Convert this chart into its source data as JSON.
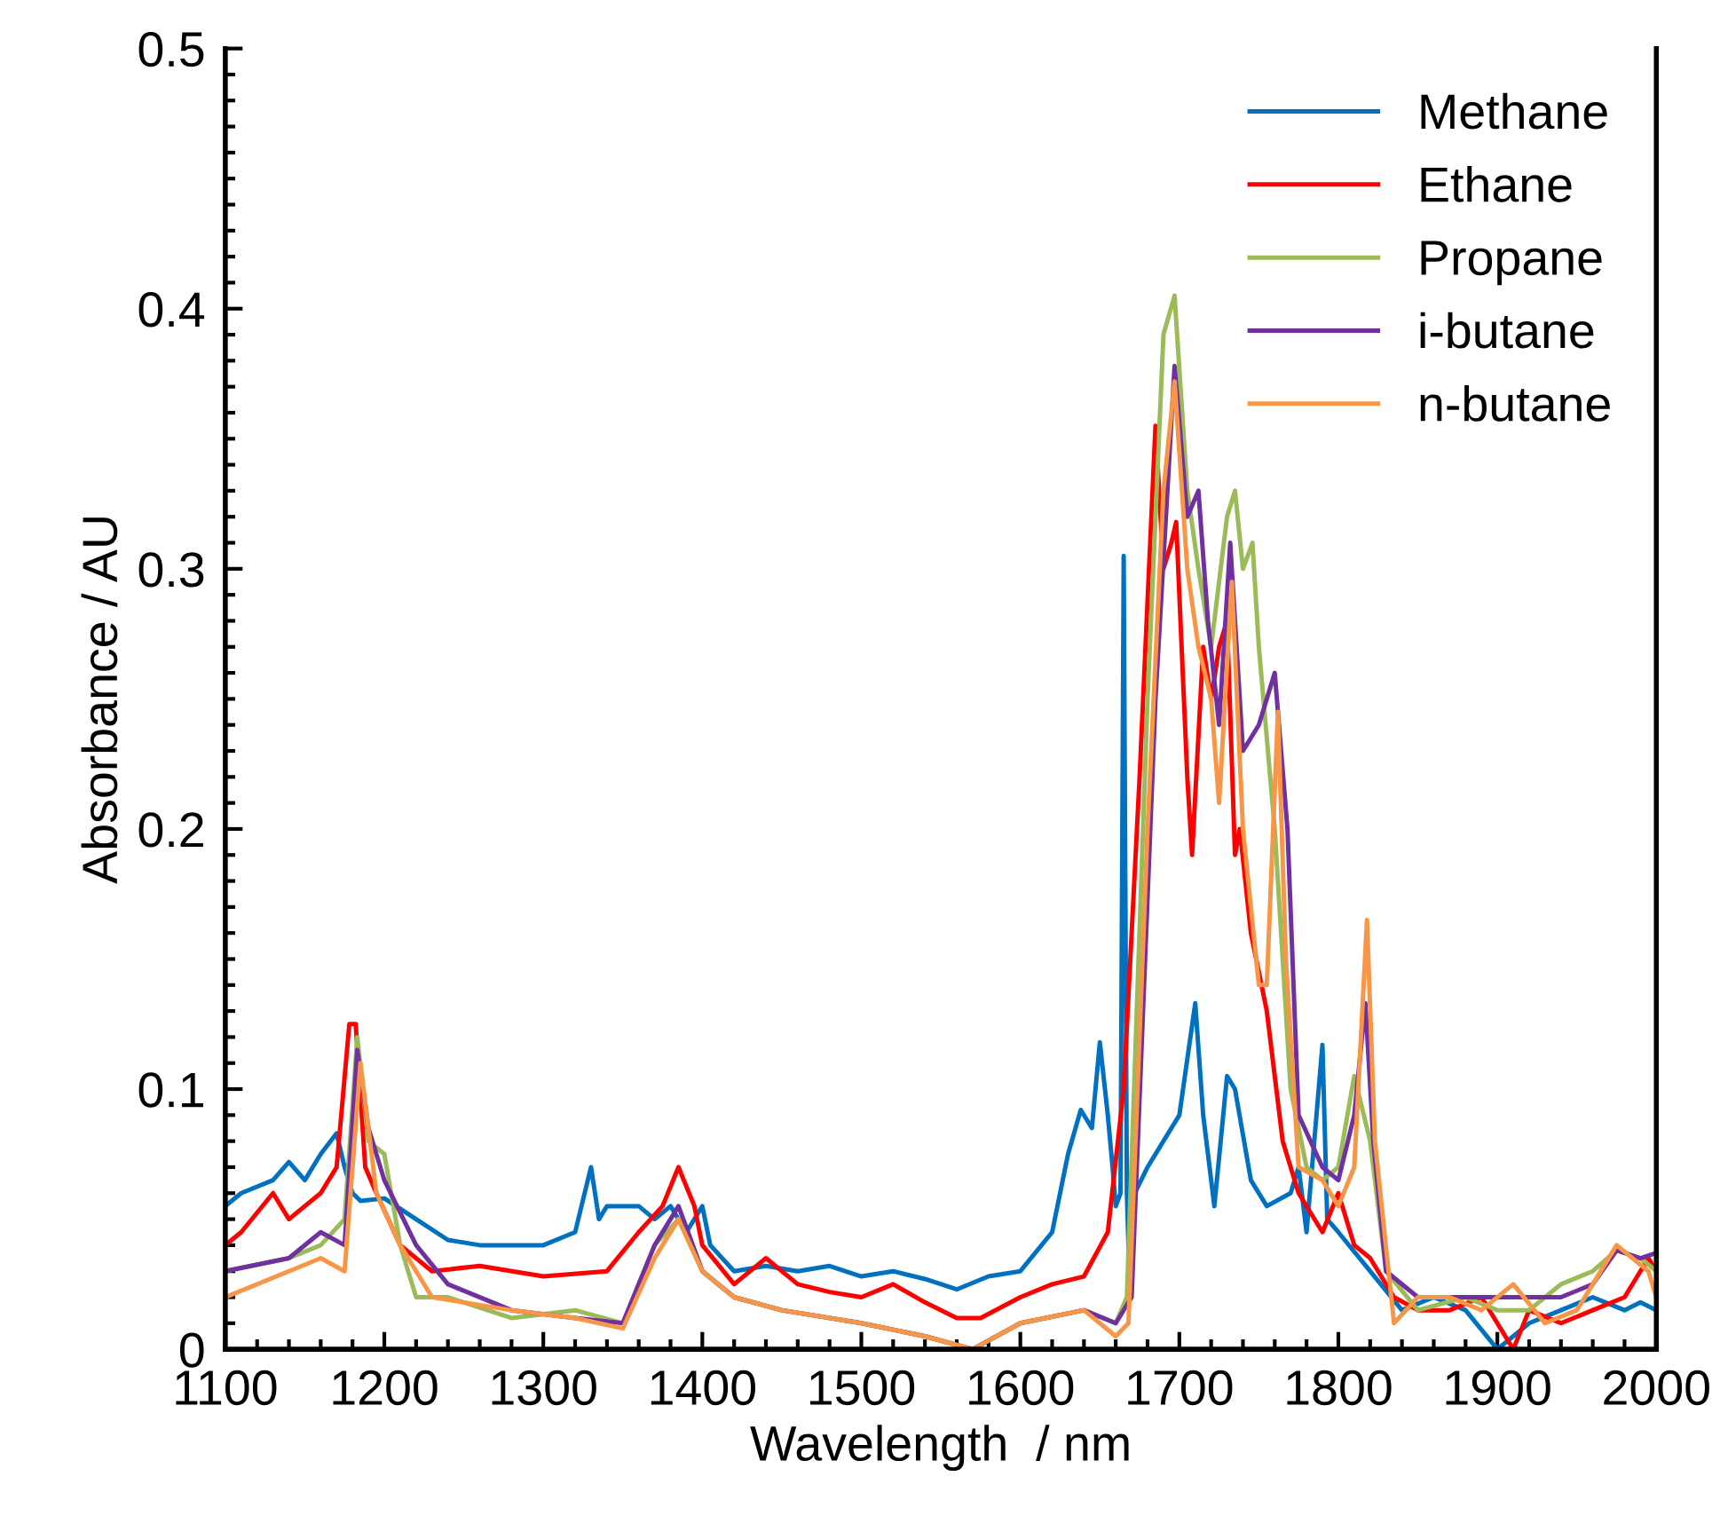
{
  "chart_data": {
    "type": "line",
    "xlabel": "Wavelength  / nm",
    "ylabel": "Absorbance / AU",
    "xlim": [
      1100,
      2000
    ],
    "xticks": [
      1100,
      1200,
      1300,
      1400,
      1500,
      1600,
      1700,
      1800,
      1900,
      2000
    ],
    "ylim": [
      0,
      0.5
    ],
    "yticks": [
      0,
      0.1,
      0.2,
      0.3,
      0.4,
      0.5
    ],
    "grid": false,
    "legend": "top right",
    "marker": "none",
    "line_style": "solid",
    "series": [
      {
        "name": "Methane",
        "color": "#0070c0",
        "x": [
          1100,
          1110,
          1130,
          1140,
          1150,
          1160,
          1170,
          1175,
          1180,
          1185,
          1200,
          1220,
          1240,
          1260,
          1280,
          1300,
          1320,
          1330,
          1335,
          1340,
          1360,
          1370,
          1380,
          1390,
          1400,
          1405,
          1420,
          1440,
          1460,
          1480,
          1500,
          1520,
          1540,
          1560,
          1580,
          1600,
          1620,
          1630,
          1638,
          1645,
          1650,
          1655,
          1658,
          1660,
          1663,
          1665,
          1667,
          1669,
          1672,
          1680,
          1690,
          1700,
          1710,
          1715,
          1722,
          1730,
          1735,
          1745,
          1755,
          1770,
          1775,
          1780,
          1790,
          1793,
          1800,
          1820,
          1840,
          1860,
          1880,
          1900,
          1910,
          1920,
          1940,
          1960,
          1980,
          1990,
          2000
        ],
        "values": [
          0.055,
          0.06,
          0.065,
          0.072,
          0.065,
          0.075,
          0.083,
          0.07,
          0.06,
          0.057,
          0.058,
          0.05,
          0.042,
          0.04,
          0.04,
          0.04,
          0.045,
          0.07,
          0.05,
          0.055,
          0.055,
          0.05,
          0.055,
          0.045,
          0.055,
          0.04,
          0.03,
          0.032,
          0.03,
          0.032,
          0.028,
          0.03,
          0.027,
          0.023,
          0.028,
          0.03,
          0.045,
          0.075,
          0.092,
          0.085,
          0.118,
          0.09,
          0.07,
          0.055,
          0.06,
          0.305,
          0.06,
          0.02,
          0.06,
          0.07,
          0.08,
          0.09,
          0.133,
          0.09,
          0.055,
          0.105,
          0.1,
          0.065,
          0.055,
          0.06,
          0.07,
          0.045,
          0.117,
          0.05,
          0.045,
          0.03,
          0.015,
          0.02,
          0.015,
          0.0,
          0.005,
          0.01,
          0.015,
          0.02,
          0.015,
          0.018,
          0.015
        ]
      },
      {
        "name": "Ethane",
        "color": "#ff0000",
        "x": [
          1100,
          1110,
          1130,
          1140,
          1150,
          1160,
          1170,
          1178,
          1182,
          1188,
          1195,
          1210,
          1230,
          1260,
          1300,
          1340,
          1360,
          1375,
          1385,
          1395,
          1400,
          1420,
          1440,
          1460,
          1480,
          1500,
          1520,
          1540,
          1560,
          1575,
          1600,
          1620,
          1640,
          1655,
          1665,
          1675,
          1685,
          1690,
          1695,
          1698,
          1705,
          1708,
          1715,
          1720,
          1725,
          1730,
          1735,
          1738,
          1745,
          1755,
          1765,
          1775,
          1790,
          1800,
          1810,
          1820,
          1835,
          1850,
          1870,
          1890,
          1905,
          1910,
          1920,
          1940,
          1960,
          1980,
          1995,
          2000
        ],
        "values": [
          0.04,
          0.045,
          0.06,
          0.05,
          0.055,
          0.06,
          0.07,
          0.125,
          0.125,
          0.07,
          0.06,
          0.04,
          0.03,
          0.032,
          0.028,
          0.03,
          0.045,
          0.055,
          0.07,
          0.055,
          0.04,
          0.025,
          0.035,
          0.025,
          0.022,
          0.02,
          0.025,
          0.018,
          0.012,
          0.012,
          0.02,
          0.025,
          0.028,
          0.045,
          0.1,
          0.22,
          0.355,
          0.3,
          0.31,
          0.318,
          0.22,
          0.19,
          0.27,
          0.25,
          0.27,
          0.28,
          0.19,
          0.2,
          0.16,
          0.13,
          0.08,
          0.06,
          0.045,
          0.06,
          0.04,
          0.035,
          0.02,
          0.015,
          0.015,
          0.02,
          0.005,
          0.0,
          0.015,
          0.01,
          0.015,
          0.02,
          0.035,
          0.03
        ]
      },
      {
        "name": "Propane",
        "color": "#9bbb59",
        "x": [
          1100,
          1140,
          1160,
          1175,
          1183,
          1190,
          1200,
          1210,
          1220,
          1240,
          1280,
          1320,
          1350,
          1370,
          1385,
          1400,
          1420,
          1450,
          1500,
          1540,
          1570,
          1600,
          1640,
          1660,
          1667,
          1680,
          1690,
          1697,
          1705,
          1712,
          1720,
          1730,
          1735,
          1740,
          1746,
          1750,
          1760,
          1770,
          1780,
          1790,
          1800,
          1810,
          1820,
          1830,
          1850,
          1880,
          1900,
          1920,
          1940,
          1960,
          1975,
          1990,
          2000
        ],
        "values": [
          0.03,
          0.035,
          0.04,
          0.05,
          0.12,
          0.08,
          0.075,
          0.04,
          0.02,
          0.02,
          0.012,
          0.015,
          0.01,
          0.04,
          0.05,
          0.03,
          0.02,
          0.015,
          0.01,
          0.005,
          0.0,
          0.01,
          0.015,
          0.01,
          0.02,
          0.25,
          0.39,
          0.405,
          0.33,
          0.3,
          0.27,
          0.32,
          0.33,
          0.3,
          0.31,
          0.27,
          0.2,
          0.1,
          0.07,
          0.065,
          0.07,
          0.105,
          0.08,
          0.03,
          0.015,
          0.02,
          0.015,
          0.015,
          0.025,
          0.03,
          0.038,
          0.035,
          0.03
        ]
      },
      {
        "name": "i-butane",
        "color": "#7030a0",
        "x": [
          1100,
          1140,
          1160,
          1175,
          1183,
          1190,
          1200,
          1220,
          1240,
          1280,
          1320,
          1350,
          1370,
          1385,
          1400,
          1420,
          1450,
          1500,
          1540,
          1570,
          1600,
          1640,
          1660,
          1670,
          1685,
          1697,
          1705,
          1712,
          1718,
          1725,
          1732,
          1740,
          1750,
          1760,
          1768,
          1775,
          1790,
          1800,
          1810,
          1817,
          1822,
          1830,
          1850,
          1880,
          1900,
          1920,
          1940,
          1960,
          1975,
          1990,
          2000
        ],
        "values": [
          0.03,
          0.035,
          0.045,
          0.04,
          0.115,
          0.085,
          0.065,
          0.04,
          0.025,
          0.015,
          0.012,
          0.01,
          0.04,
          0.055,
          0.03,
          0.02,
          0.015,
          0.01,
          0.005,
          0.0,
          0.01,
          0.015,
          0.01,
          0.02,
          0.25,
          0.378,
          0.32,
          0.33,
          0.28,
          0.24,
          0.31,
          0.23,
          0.24,
          0.26,
          0.2,
          0.09,
          0.07,
          0.065,
          0.09,
          0.133,
          0.08,
          0.03,
          0.02,
          0.02,
          0.02,
          0.02,
          0.02,
          0.025,
          0.038,
          0.035,
          0.037
        ]
      },
      {
        "name": "n-butane",
        "color": "#f79646",
        "x": [
          1100,
          1140,
          1160,
          1175,
          1185,
          1195,
          1210,
          1230,
          1280,
          1320,
          1350,
          1370,
          1385,
          1400,
          1420,
          1450,
          1500,
          1540,
          1570,
          1600,
          1640,
          1660,
          1668,
          1680,
          1690,
          1697,
          1705,
          1712,
          1720,
          1725,
          1733,
          1740,
          1750,
          1755,
          1762,
          1767,
          1775,
          1790,
          1800,
          1810,
          1818,
          1823,
          1835,
          1850,
          1870,
          1890,
          1910,
          1930,
          1950,
          1975,
          1995,
          2000
        ],
        "values": [
          0.02,
          0.03,
          0.035,
          0.03,
          0.11,
          0.06,
          0.04,
          0.02,
          0.015,
          0.012,
          0.008,
          0.035,
          0.05,
          0.03,
          0.02,
          0.015,
          0.01,
          0.005,
          0.0,
          0.01,
          0.015,
          0.005,
          0.01,
          0.2,
          0.33,
          0.372,
          0.3,
          0.27,
          0.25,
          0.21,
          0.295,
          0.2,
          0.14,
          0.14,
          0.245,
          0.15,
          0.07,
          0.065,
          0.055,
          0.07,
          0.165,
          0.08,
          0.01,
          0.02,
          0.02,
          0.015,
          0.025,
          0.01,
          0.015,
          0.04,
          0.03,
          0.02
        ]
      }
    ]
  }
}
